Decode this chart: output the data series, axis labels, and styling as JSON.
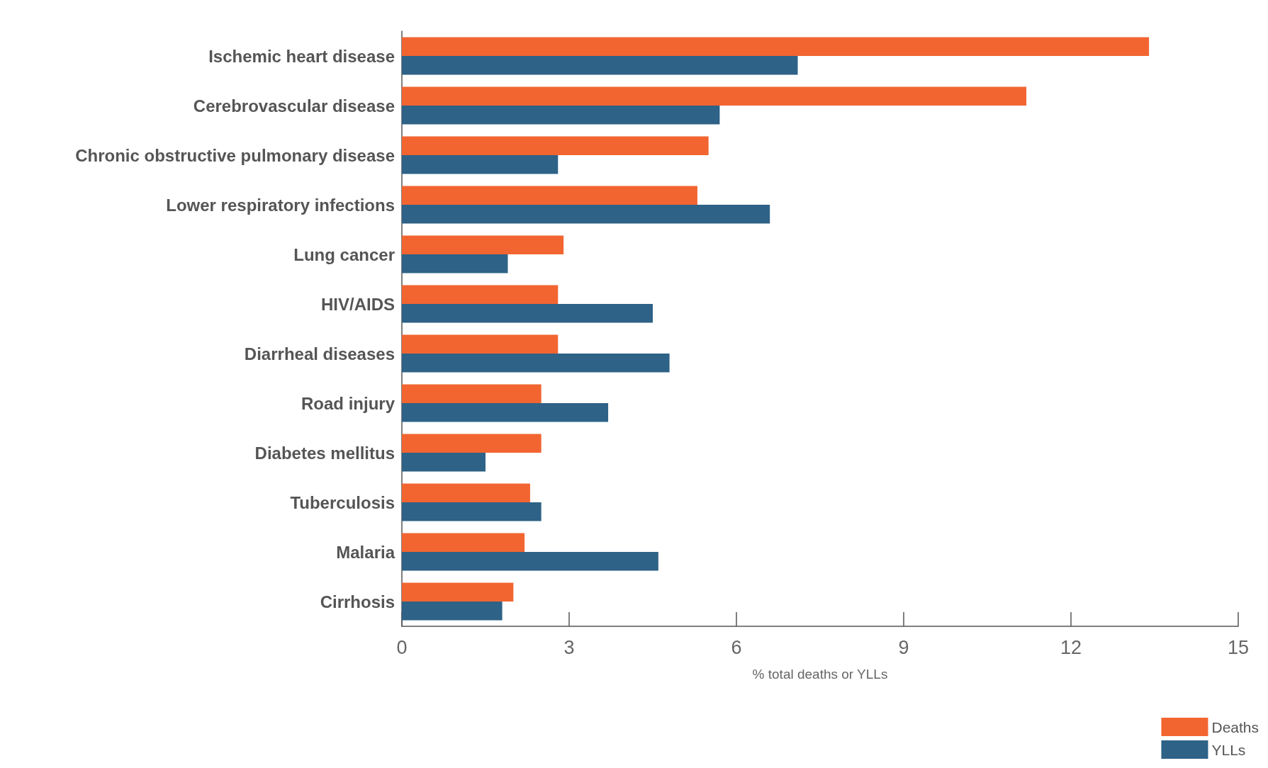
{
  "chart_data": {
    "type": "bar",
    "orientation": "horizontal",
    "xlabel": "% total deaths or YLLs",
    "categories": [
      "Ischemic heart disease",
      "Cerebrovascular disease",
      "Chronic obstructive pulmonary disease",
      "Lower respiratory infections",
      "Lung cancer",
      "HIV/AIDS",
      "Diarrheal diseases",
      "Road injury",
      "Diabetes mellitus",
      "Tuberculosis",
      "Malaria",
      "Cirrhosis"
    ],
    "series": [
      {
        "name": "Deaths",
        "color": "#f26531",
        "values": [
          13.4,
          11.2,
          5.5,
          5.3,
          2.9,
          2.8,
          2.8,
          2.5,
          2.5,
          2.3,
          2.2,
          2.0
        ]
      },
      {
        "name": "YLLs",
        "color": "#2e6287",
        "values": [
          7.1,
          5.7,
          2.8,
          6.6,
          1.9,
          4.5,
          4.8,
          3.7,
          1.5,
          2.5,
          4.6,
          1.8
        ]
      }
    ],
    "xlim": [
      0,
      15
    ],
    "xticks": [
      0,
      3,
      6,
      9,
      12,
      15
    ],
    "grid": false,
    "legend": "bottom right"
  }
}
